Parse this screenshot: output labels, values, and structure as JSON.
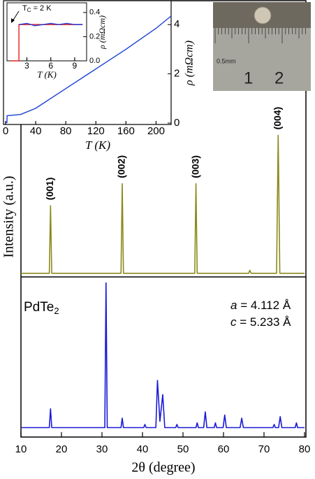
{
  "chart_data": [
    {
      "type": "line",
      "ylabel": "Intensity (a.u.)",
      "xlim": [
        10,
        80
      ],
      "ylim": [
        0,
        100
      ],
      "x": [
        10,
        17.0,
        17.3,
        17.6,
        34.7,
        35.0,
        35.3,
        52.9,
        53.2,
        53.5,
        66.2,
        66.5,
        66.8,
        73.1,
        73.5,
        73.9,
        80
      ],
      "series": [
        {
          "color": "#8a8a1e",
          "values": [
            2,
            2,
            48,
            2,
            2,
            63,
            2,
            2,
            63,
            2,
            2,
            4,
            2,
            2,
            96,
            2,
            2
          ]
        }
      ],
      "annotations": [
        {
          "text": "(001)",
          "x": 17.3,
          "y": 48
        },
        {
          "text": "(002)",
          "x": 35.0,
          "y": 63
        },
        {
          "text": "(003)",
          "x": 53.2,
          "y": 63
        },
        {
          "text": "(004)",
          "x": 73.5,
          "y": 96
        }
      ]
    },
    {
      "type": "line",
      "xlabel": "2θ (degree)",
      "xlim": [
        10,
        80
      ],
      "ylim": [
        0,
        100
      ],
      "xticks": [
        10,
        20,
        30,
        40,
        50,
        60,
        70,
        80
      ],
      "x": [
        10,
        17.0,
        17.3,
        17.6,
        30.7,
        31.0,
        31.3,
        34.7,
        35.0,
        35.3,
        40.3,
        40.6,
        40.9,
        43.3,
        43.7,
        44.3,
        45.0,
        45.5,
        48.2,
        48.5,
        48.8,
        53.2,
        53.5,
        53.8,
        55.1,
        55.5,
        55.9,
        57.7,
        58.0,
        58.3,
        59.9,
        60.3,
        60.7,
        64.1,
        64.5,
        64.9,
        72.2,
        72.5,
        72.8,
        73.6,
        74.0,
        74.4,
        77.7,
        78.0,
        78.3,
        80
      ],
      "series": [
        {
          "color": "#1a1ad6",
          "values": [
            6,
            6,
            18,
            6,
            6,
            98,
            6,
            6,
            12,
            6,
            6,
            8,
            6,
            6,
            36,
            10,
            27,
            6,
            6,
            8,
            6,
            6,
            9,
            6,
            6,
            16,
            6,
            6,
            9,
            6,
            6,
            14,
            6,
            6,
            12,
            6,
            6,
            8,
            6,
            6,
            13,
            6,
            6,
            9,
            6,
            6
          ]
        }
      ],
      "compound": {
        "main": "PdTe",
        "sub": "2"
      },
      "lattice": [
        {
          "symbol": "a",
          "text": " = 4.112 Å"
        },
        {
          "symbol": "c",
          "text": " = 5.233 Å"
        }
      ]
    },
    {
      "type": "line",
      "xlabel": "T (K)",
      "ylabel": "ρ (mΩcm)",
      "xlim": [
        0,
        220
      ],
      "ylim": [
        0,
        5
      ],
      "xticks": [
        0,
        40,
        80,
        120,
        160,
        200
      ],
      "yticks": [
        0,
        2,
        4
      ],
      "x": [
        0,
        1.8,
        2,
        20,
        40,
        80,
        120,
        160,
        200,
        220
      ],
      "series": [
        {
          "color": "#1a3fd6",
          "values": [
            0.02,
            0.02,
            0.3,
            0.35,
            0.6,
            1.4,
            2.2,
            3.0,
            3.85,
            4.35
          ]
        }
      ]
    },
    {
      "type": "line",
      "xlabel": "T (K)",
      "ylabel": "ρ (mΩcm)",
      "xlim": [
        0.5,
        10.5
      ],
      "ylim": [
        0,
        0.48
      ],
      "xticks": [
        3,
        6,
        9
      ],
      "yticks": [
        {
          "value": 0,
          "label": "0.0"
        },
        {
          "value": 0.2,
          "label": "0.2"
        },
        {
          "value": 0.4,
          "label": "0.4"
        }
      ],
      "x": [
        1,
        2,
        2,
        3,
        4,
        5,
        6,
        7,
        8,
        9,
        10
      ],
      "series": [
        {
          "color": "#e0201a",
          "values": [
            0,
            0,
            0.3,
            0.3,
            0.3,
            0.3,
            0.3,
            0.3,
            0.3,
            0.3,
            0.3
          ]
        },
        {
          "color": "#2a3ad6",
          "values": [
            null,
            null,
            0.3,
            0.31,
            0.29,
            0.3,
            0.31,
            0.3,
            0.31,
            0.3,
            0.3
          ]
        }
      ],
      "annotation": {
        "main": "T",
        "sub": "C",
        "rest": " = 2 K"
      }
    }
  ],
  "photo": {
    "labels": [
      "0.5mm",
      "1",
      "2"
    ]
  }
}
